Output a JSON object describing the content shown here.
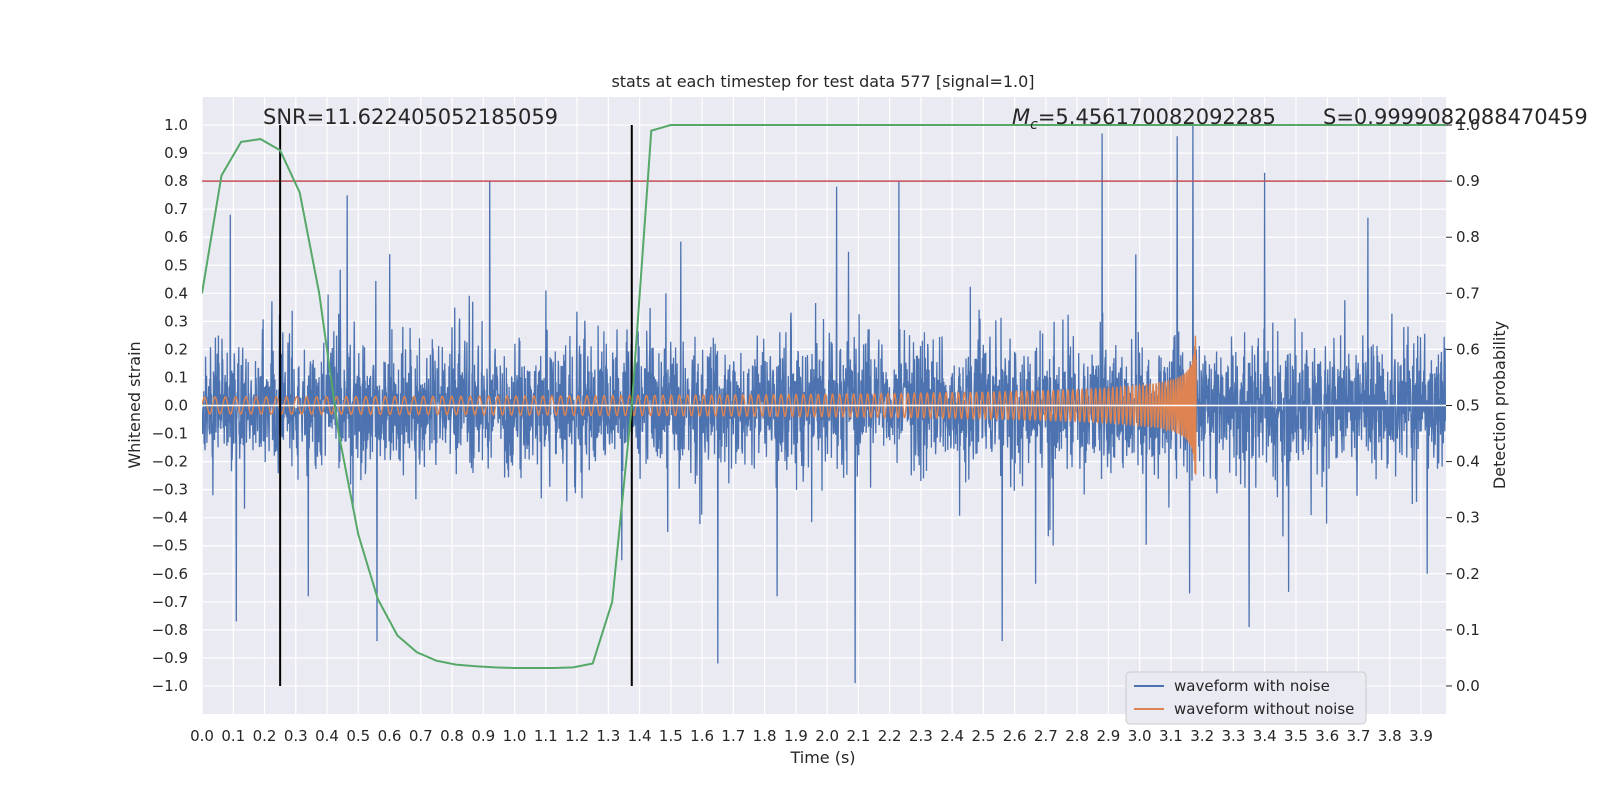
{
  "chart_data": {
    "type": "line",
    "title": "stats at each timestep for test data 577 [signal=1.0]",
    "xlabel": "Time (s)",
    "ylabel_left": "Whitened strain",
    "ylabel_right": "Detection probability",
    "xlim": [
      0.0,
      3.98
    ],
    "ylim_left": [
      -1.1,
      1.1
    ],
    "ylim_right": [
      -0.05,
      1.05
    ],
    "x_ticks": [
      "0.0",
      "0.1",
      "0.2",
      "0.3",
      "0.4",
      "0.5",
      "0.6",
      "0.7",
      "0.8",
      "0.9",
      "1.0",
      "1.1",
      "1.2",
      "1.3",
      "1.4",
      "1.5",
      "1.6",
      "1.7",
      "1.8",
      "1.9",
      "2.0",
      "2.1",
      "2.2",
      "2.3",
      "2.4",
      "2.5",
      "2.6",
      "2.7",
      "2.8",
      "2.9",
      "3.0",
      "3.1",
      "3.2",
      "3.3",
      "3.4",
      "3.5",
      "3.6",
      "3.7",
      "3.8",
      "3.9"
    ],
    "y_ticks_left": [
      "1.0",
      "0.9",
      "0.8",
      "0.7",
      "0.6",
      "0.5",
      "0.4",
      "0.3",
      "0.2",
      "0.1",
      "0.0",
      "−0.1",
      "−0.2",
      "−0.3",
      "−0.4",
      "−0.5",
      "−0.6",
      "−0.7",
      "−0.8",
      "−0.9",
      "−1.0"
    ],
    "y_ticks_right": [
      "1.0",
      "0.9",
      "0.8",
      "0.7",
      "0.6",
      "0.5",
      "0.4",
      "0.3",
      "0.2",
      "0.1",
      "0.0"
    ],
    "grid": true,
    "legend_position": "lower-right",
    "annotations": {
      "snr": "SNR=11.622405052185059",
      "mc_symbol": "M",
      "mc_sub": "c",
      "mc_value": "=5.456170082092285",
      "s": "S=0.9999082088470459"
    },
    "threshold_line": {
      "name": "threshold",
      "y": 0.8,
      "color": "#c44e52"
    },
    "vertical_lines": [
      0.25,
      1.375
    ],
    "series": [
      {
        "name": "waveform with noise",
        "color": "#4c72b0",
        "axis": "left",
        "noise_sigma": 0.2,
        "seed": 577,
        "peaks": [
          {
            "x": 3.17,
            "y": 1.0
          },
          {
            "x": 3.12,
            "y": 0.96
          },
          {
            "x": 2.88,
            "y": 0.97
          },
          {
            "x": 3.4,
            "y": 0.83
          },
          {
            "x": 0.92,
            "y": 0.8
          },
          {
            "x": 2.03,
            "y": 0.78
          },
          {
            "x": 2.23,
            "y": 0.8
          },
          {
            "x": 0.465,
            "y": 0.75
          },
          {
            "x": 3.73,
            "y": 0.67
          },
          {
            "x": 0.09,
            "y": 0.68
          },
          {
            "x": 0.11,
            "y": -0.77
          },
          {
            "x": 0.56,
            "y": -0.84
          },
          {
            "x": 1.65,
            "y": -0.92
          },
          {
            "x": 2.09,
            "y": -0.99
          },
          {
            "x": 2.56,
            "y": -0.84
          },
          {
            "x": 3.35,
            "y": -0.79
          },
          {
            "x": 1.84,
            "y": -0.68
          },
          {
            "x": 3.16,
            "y": -0.67
          },
          {
            "x": 0.34,
            "y": -0.68
          },
          {
            "x": 3.92,
            "y": -0.6
          }
        ]
      },
      {
        "name": "waveform without noise",
        "color": "#dd8452",
        "axis": "left",
        "t_coalescence": 3.18,
        "amplitude_base": 0.03,
        "amplitude_peak": 0.25,
        "freq_start_hz": 30
      },
      {
        "name": "detection probability",
        "color": "#55a868",
        "axis": "right",
        "x": [
          0.0,
          0.0625,
          0.125,
          0.1875,
          0.25,
          0.3125,
          0.375,
          0.4375,
          0.5,
          0.5625,
          0.625,
          0.6875,
          0.75,
          0.8125,
          0.875,
          0.9375,
          1.0,
          1.0625,
          1.125,
          1.1875,
          1.25,
          1.3125,
          1.375,
          1.4375,
          1.5,
          1.5625,
          1.625,
          1.6875,
          1.75,
          3.98
        ],
        "y": [
          0.7,
          0.91,
          0.97,
          0.975,
          0.955,
          0.88,
          0.7,
          0.45,
          0.27,
          0.155,
          0.09,
          0.06,
          0.045,
          0.038,
          0.035,
          0.033,
          0.032,
          0.032,
          0.032,
          0.033,
          0.04,
          0.15,
          0.5,
          0.99,
          1.0,
          1.0,
          1.0,
          1.0,
          1.0,
          1.0
        ]
      }
    ]
  }
}
